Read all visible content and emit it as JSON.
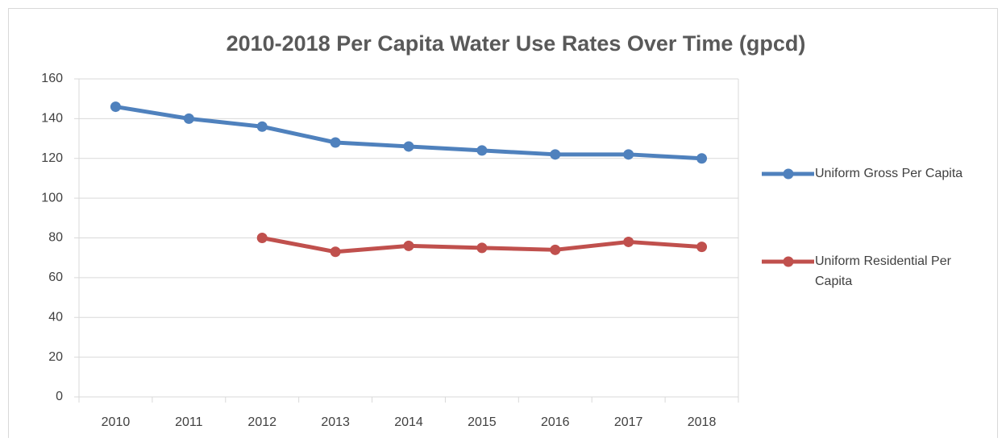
{
  "chart_data": {
    "type": "line",
    "title": "2010-2018 Per Capita Water Use Rates Over Time (gpcd)",
    "categories": [
      "2010",
      "2011",
      "2012",
      "2013",
      "2014",
      "2015",
      "2016",
      "2017",
      "2018"
    ],
    "series": [
      {
        "name": "Uniform Gross Per Capita",
        "color": "#4f81bd",
        "values": [
          146,
          140,
          136,
          128,
          126,
          124,
          122,
          122,
          120
        ]
      },
      {
        "name": "Uniform Residential Per Capita",
        "color": "#c0504d",
        "values": [
          null,
          null,
          80,
          73,
          76,
          75,
          74,
          78,
          75.5
        ]
      }
    ],
    "ylim": [
      0,
      160
    ],
    "yticks": [
      0,
      20,
      40,
      60,
      80,
      100,
      120,
      140,
      160
    ],
    "grid": true,
    "legend": "right"
  }
}
